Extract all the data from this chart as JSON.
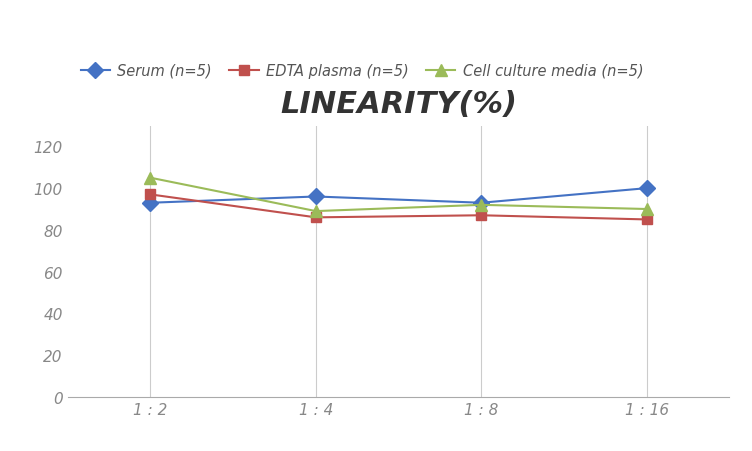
{
  "title": "LINEARITY(%)",
  "x_labels": [
    "1 : 2",
    "1 : 4",
    "1 : 8",
    "1 : 16"
  ],
  "x_positions": [
    0,
    1,
    2,
    3
  ],
  "series": [
    {
      "label": "Serum (n=5)",
      "values": [
        93,
        96,
        93,
        100
      ],
      "color": "#4472C4",
      "marker": "D",
      "marker_size": 8
    },
    {
      "label": "EDTA plasma (n=5)",
      "values": [
        97,
        86,
        87,
        85
      ],
      "color": "#C0504D",
      "marker": "s",
      "marker_size": 7
    },
    {
      "label": "Cell culture media (n=5)",
      "values": [
        105,
        89,
        92,
        90
      ],
      "color": "#9BBB59",
      "marker": "^",
      "marker_size": 9
    }
  ],
  "ylim": [
    0,
    130
  ],
  "yticks": [
    0,
    20,
    40,
    60,
    80,
    100,
    120
  ],
  "grid_color": "#CCCCCC",
  "background_color": "#FFFFFF",
  "title_fontsize": 22,
  "legend_fontsize": 10.5,
  "tick_fontsize": 11,
  "tick_color": "#888888"
}
